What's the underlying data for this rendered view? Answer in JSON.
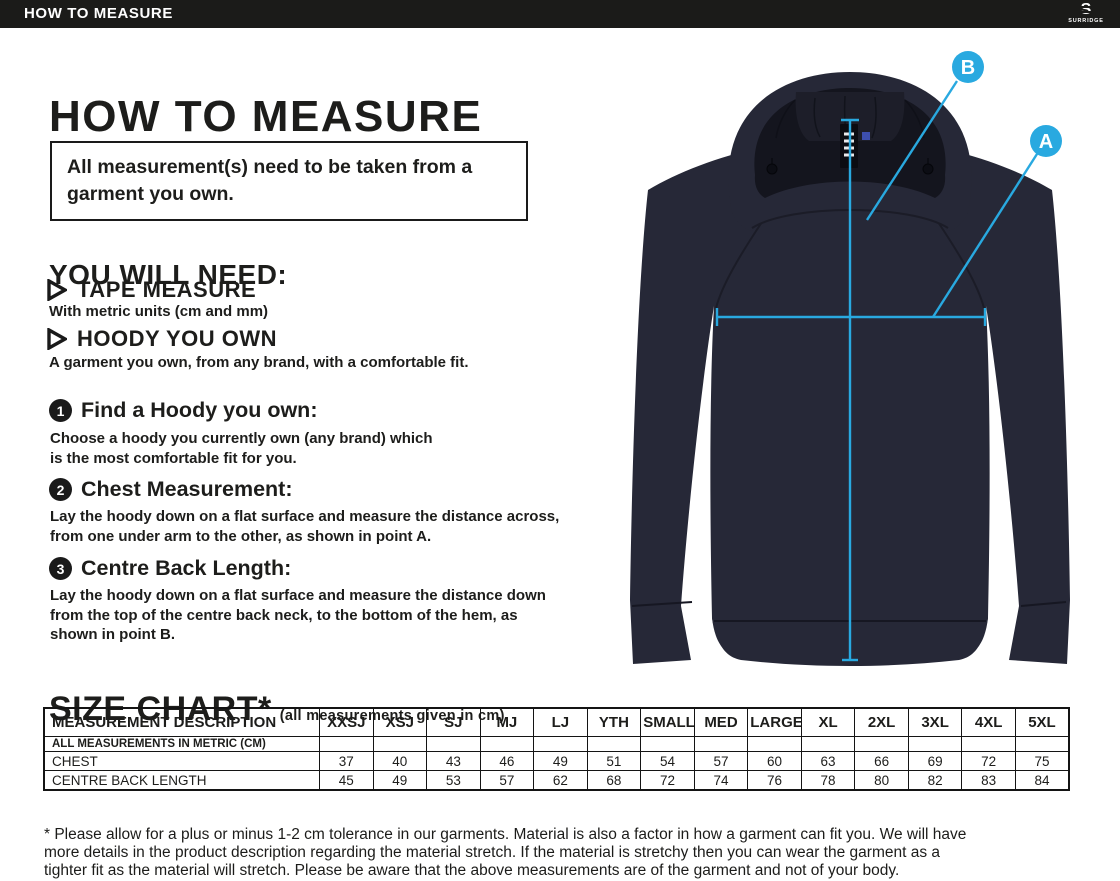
{
  "topbar": {
    "title": "HOW TO MEASURE",
    "brand": "SURRIDGE",
    "brand_glyph": "S"
  },
  "page": {
    "title": "HOW TO MEASURE",
    "notice": "All measurement(s) need to be taken from a garment you own.",
    "you_will_need": {
      "heading": "YOU WILL NEED:",
      "items": [
        {
          "label": "TAPE MEASURE",
          "detail": "With metric units (cm and mm)"
        },
        {
          "label": "HOODY YOU OWN",
          "detail": "A garment you own, from any brand, with a comfortable fit."
        }
      ]
    },
    "steps": [
      {
        "num": "1",
        "title": "Find a Hoody you own:",
        "desc": "Choose a hoody you currently own (any brand) which\nis the most comfortable fit for you."
      },
      {
        "num": "2",
        "title": "Chest Measurement:",
        "desc": "Lay the hoody down on a flat surface and measure the distance across,\nfrom one under arm to the other, as shown in point A."
      },
      {
        "num": "3",
        "title": "Centre Back Length:",
        "desc": "Lay the hoody down on a flat surface and measure the distance down\nfrom the top of the centre back neck, to the bottom of the hem, as\nshown in point B."
      }
    ],
    "size_chart": {
      "heading": "SIZE CHART*",
      "subheading": "(all measurements given in cm)"
    },
    "footnote": "* Please allow for a plus or minus 1-2 cm tolerance in our garments. Material is also a factor in how a garment can fit you. We will have\nmore details in the product description regarding the material stretch.  If the material is stretchy then you can wear the garment as a\ntighter fit as the material will stretch.  Please be aware that the above measurements are of the garment and not of your body."
  },
  "size_table": {
    "columns": [
      "MEASUREMENT DESCRIPTION",
      "XXSJ",
      "XSJ",
      "SJ",
      "MJ",
      "LJ",
      "YTH",
      "SMALL",
      "MED",
      "LARGE",
      "XL",
      "2XL",
      "3XL",
      "4XL",
      "5XL"
    ],
    "note_row": "ALL MEASUREMENTS IN METRIC (CM)",
    "rows": [
      {
        "label": "CHEST",
        "values": [
          "37",
          "40",
          "43",
          "46",
          "49",
          "51",
          "54",
          "57",
          "60",
          "63",
          "66",
          "69",
          "72",
          "75"
        ]
      },
      {
        "label": "CENTRE BACK LENGTH",
        "values": [
          "45",
          "49",
          "53",
          "57",
          "62",
          "68",
          "72",
          "74",
          "76",
          "78",
          "80",
          "82",
          "83",
          "84"
        ]
      }
    ]
  },
  "diagram": {
    "point_a": "A",
    "point_b": "B"
  },
  "theme": {
    "accent": "#29a9e0",
    "ink": "#1d1d1b",
    "bar": "#1b1b19",
    "fabric": "#262837",
    "fabric-dark": "#14151e",
    "fabric-mid": "#1d1e29"
  }
}
